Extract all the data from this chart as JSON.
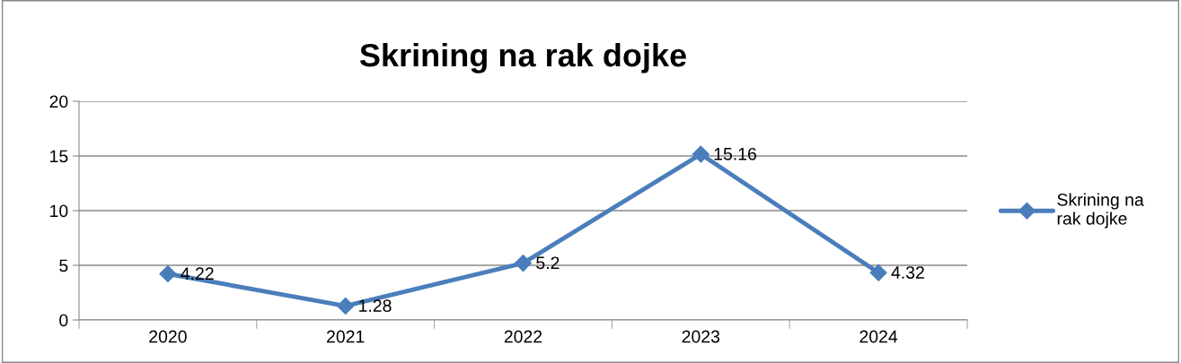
{
  "chart_data": {
    "type": "line",
    "title": "Skrining na rak dojke",
    "categories": [
      "2020",
      "2021",
      "2022",
      "2023",
      "2024"
    ],
    "series": [
      {
        "name": "Skrining na rak dojke",
        "color": "#4a7ebb",
        "values": [
          4.22,
          1.28,
          5.2,
          15.16,
          4.32
        ]
      }
    ],
    "ylim": [
      0,
      20
    ],
    "yticks": [
      0,
      5,
      10,
      15,
      20
    ],
    "grid": "y",
    "legend": "right",
    "marker": "diamond",
    "line_style": "solid",
    "data_labels": true
  }
}
